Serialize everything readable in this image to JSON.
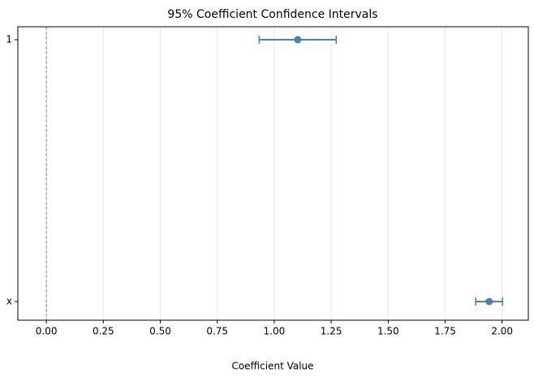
{
  "chart_data": {
    "type": "errorbar",
    "title": "95% Coefficient Confidence Intervals",
    "xlabel": "Coefficient Value",
    "categories": [
      "1",
      "x"
    ],
    "values": [
      1.103,
      1.943
    ],
    "errors": [
      0.169,
      0.059
    ],
    "color": "#4682b4",
    "xlim": [
      -0.125,
      2.115
    ],
    "xticks": [
      {
        "value": 0,
        "label": "0.00"
      },
      {
        "value": 0.25,
        "label": "0.25"
      },
      {
        "value": 0.5,
        "label": "0.50"
      },
      {
        "value": 0.75,
        "label": "0.75"
      },
      {
        "value": 1,
        "label": "1.00"
      },
      {
        "value": 1.25,
        "label": "1.25"
      },
      {
        "value": 1.5,
        "label": "1.50"
      },
      {
        "value": 1.75,
        "label": "1.75"
      },
      {
        "value": 2,
        "label": "2.00"
      }
    ],
    "reference_line": 0,
    "grid": true
  }
}
